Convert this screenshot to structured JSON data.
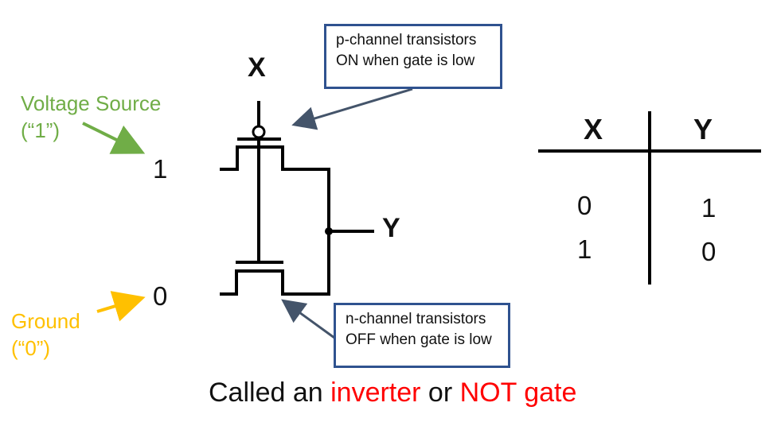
{
  "labels": {
    "input_x": "X",
    "output_y": "Y",
    "voltage_source": [
      "Voltage Source",
      "(“1”)"
    ],
    "ground": [
      "Ground",
      "(“0”)"
    ],
    "rail_high": "1",
    "rail_low": "0"
  },
  "callouts": {
    "p_channel": [
      "p-channel transistors",
      "ON when gate is low"
    ],
    "n_channel": [
      "n-channel transistors",
      "OFF when gate is low"
    ]
  },
  "truth_table": {
    "headers": [
      "X",
      "Y"
    ],
    "rows": [
      [
        "0",
        "1"
      ],
      [
        "1",
        "0"
      ]
    ]
  },
  "caption": {
    "prefix": "Called an ",
    "term1": "inverter",
    "middle": " or ",
    "term2": "NOT gate"
  },
  "colors": {
    "voltage_source": "#70ad47",
    "ground": "#ffc000",
    "callout_border": "#2f528f",
    "highlight": "#ff0000",
    "arrow_dark": "#44546a"
  }
}
